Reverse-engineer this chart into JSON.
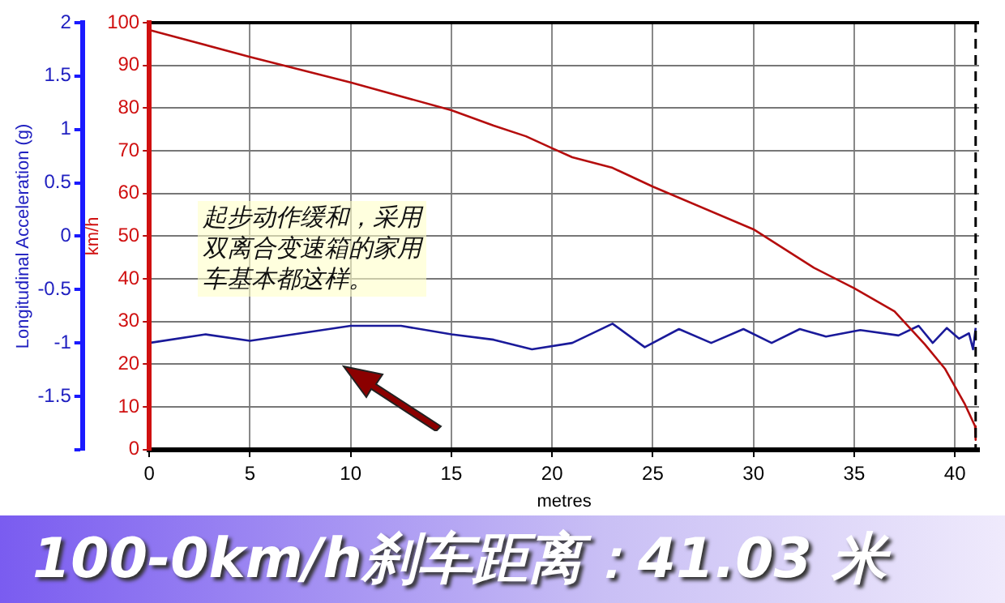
{
  "chart_data": {
    "type": "line",
    "title": "100-0km/h刹车距离：41.03 米",
    "xlabel": "metres",
    "ylabel": "km/h",
    "y2label": "Longitudinal Acceleration (g)",
    "annotations": [
      "起步动作缓和，采用双离合变速箱的家用车基本都这样。"
    ],
    "series": [
      {
        "color": "#b50d0d",
        "x": [
          0,
          5,
          10,
          15,
          17.1,
          18.7,
          20,
          21,
          23,
          25,
          30,
          33,
          35,
          37,
          38.5,
          39.5,
          40.5,
          41,
          41.03
        ],
        "values": [
          98.3,
          92,
          86,
          79.5,
          75.9,
          73.4,
          70.6,
          68.5,
          66,
          61.6,
          51.6,
          42.6,
          37.8,
          32.4,
          24.7,
          19,
          10.6,
          5.5,
          2.3
        ]
      },
      {
        "color": "#1a1a9a",
        "axis": "y2",
        "x": [
          0,
          2.8,
          5,
          10,
          12.5,
          15,
          17.1,
          19,
          21,
          23,
          24.6,
          26.3,
          27.9,
          29.5,
          30.9,
          32.3,
          33.6,
          35.3,
          37.2,
          38.2,
          38.9,
          39.6,
          40.2,
          40.7,
          40.9,
          41.03
        ],
        "values": [
          -1.0,
          -0.92,
          -0.98,
          -0.84,
          -0.84,
          -0.92,
          -0.97,
          -1.06,
          -1.0,
          -0.82,
          -1.04,
          -0.87,
          -1.0,
          -0.87,
          -1.0,
          -0.87,
          -0.94,
          -0.88,
          -0.93,
          -0.84,
          -1.0,
          -0.86,
          -0.96,
          -0.91,
          -1.06,
          -0.86
        ]
      }
    ],
    "xlim": [
      0,
      41.2
    ],
    "xticks": [
      0,
      5,
      10,
      15,
      20,
      25,
      30,
      35,
      40
    ],
    "ylim": [
      0,
      100
    ],
    "yticks": [
      0,
      10,
      20,
      30,
      40,
      50,
      60,
      70,
      80,
      90,
      100
    ],
    "y2lim": [
      -2,
      2
    ],
    "y2ticks": [
      {
        "value": -2,
        "label": null
      },
      -1.5,
      -1,
      -0.5,
      0,
      0.5,
      1,
      1.5,
      2
    ],
    "ref_lines": [
      {
        "axis": "x",
        "value": 41.03,
        "color": "#000000",
        "line_style": "dashed"
      }
    ],
    "grid": true,
    "legend": false,
    "marker": "none",
    "line_style": "solid"
  }
}
